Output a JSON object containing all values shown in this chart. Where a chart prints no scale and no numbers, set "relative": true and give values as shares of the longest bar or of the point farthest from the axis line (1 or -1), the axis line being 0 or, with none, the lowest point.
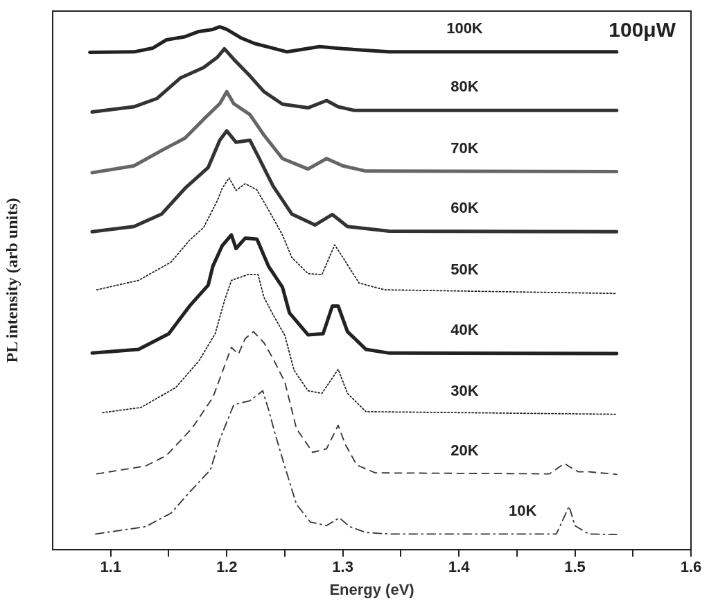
{
  "chart_data": {
    "type": "line",
    "xlabel": "Energy (eV)",
    "ylabel": "PL intensity (arb units)",
    "relative": true,
    "xlim": [
      1.05,
      1.6
    ],
    "xticks": [
      1.1,
      {
        "value": 1.15,
        "label": null
      },
      1.2,
      {
        "value": 1.25,
        "label": null
      },
      1.3,
      {
        "value": 1.35,
        "label": null
      },
      1.4,
      {
        "value": 1.45,
        "label": null
      },
      1.5,
      {
        "value": 1.55,
        "label": null
      },
      1.6
    ],
    "grid": false,
    "legend": false,
    "marker": "none",
    "annotations": [
      "100μW"
    ],
    "series": [
      {
        "name": "100K",
        "color": "#222222",
        "line_style": "solid",
        "x": [
          1.082,
          1.12,
          1.136,
          1.148,
          1.164,
          1.176,
          1.188,
          1.194,
          1.2,
          1.212,
          1.224,
          1.24,
          1.252,
          1.28,
          1.3,
          1.34,
          1.536
        ],
        "values": [
          0.951,
          0.952,
          0.959,
          0.975,
          0.981,
          0.991,
          0.995,
          1.0,
          0.995,
          0.979,
          0.968,
          0.959,
          0.952,
          0.962,
          0.958,
          0.952,
          0.952
        ]
      },
      {
        "name": "80K",
        "color": "#333333",
        "line_style": "solid",
        "x": [
          1.084,
          1.12,
          1.14,
          1.16,
          1.18,
          1.192,
          1.198,
          1.206,
          1.22,
          1.232,
          1.248,
          1.27,
          1.286,
          1.296,
          1.31,
          1.536
        ],
        "values": [
          0.837,
          0.847,
          0.863,
          0.902,
          0.922,
          0.942,
          0.958,
          0.938,
          0.906,
          0.876,
          0.852,
          0.845,
          0.859,
          0.847,
          0.84,
          0.84
        ]
      },
      {
        "name": "70K",
        "color": "#666666",
        "line_style": "solid",
        "x": [
          1.084,
          1.12,
          1.146,
          1.164,
          1.18,
          1.194,
          1.2,
          1.206,
          1.22,
          1.232,
          1.248,
          1.27,
          1.286,
          1.3,
          1.32,
          1.536
        ],
        "values": [
          0.721,
          0.734,
          0.766,
          0.787,
          0.823,
          0.853,
          0.876,
          0.853,
          0.832,
          0.793,
          0.748,
          0.728,
          0.748,
          0.734,
          0.724,
          0.723
        ]
      },
      {
        "name": "60K",
        "color": "#333333",
        "line_style": "solid",
        "x": [
          1.084,
          1.12,
          1.144,
          1.164,
          1.184,
          1.194,
          1.2,
          1.208,
          1.22,
          1.228,
          1.24,
          1.256,
          1.276,
          1.291,
          1.304,
          1.34,
          1.536
        ],
        "values": [
          0.608,
          0.618,
          0.642,
          0.691,
          0.731,
          0.783,
          0.801,
          0.779,
          0.783,
          0.748,
          0.695,
          0.642,
          0.621,
          0.641,
          0.618,
          0.609,
          0.608
        ]
      },
      {
        "name": "50K",
        "color": "#222222",
        "line_style": "dotted",
        "x": [
          1.088,
          1.124,
          1.152,
          1.168,
          1.18,
          1.192,
          1.196,
          1.202,
          1.208,
          1.216,
          1.226,
          1.238,
          1.248,
          1.256,
          1.27,
          1.282,
          1.293,
          1.3,
          1.314,
          1.336,
          1.536
        ],
        "values": [
          0.497,
          0.515,
          0.55,
          0.592,
          0.616,
          0.668,
          0.691,
          0.711,
          0.687,
          0.7,
          0.688,
          0.642,
          0.602,
          0.559,
          0.528,
          0.526,
          0.583,
          0.559,
          0.51,
          0.497,
          0.49
        ]
      },
      {
        "name": "40K",
        "color": "#222222",
        "line_style": "solid",
        "x": [
          1.084,
          1.124,
          1.15,
          1.168,
          1.184,
          1.188,
          1.196,
          1.204,
          1.208,
          1.216,
          1.226,
          1.236,
          1.248,
          1.254,
          1.27,
          1.283,
          1.291,
          1.296,
          1.304,
          1.32,
          1.34,
          1.536
        ],
        "values": [
          0.376,
          0.383,
          0.413,
          0.466,
          0.506,
          0.542,
          0.581,
          0.602,
          0.576,
          0.596,
          0.594,
          0.542,
          0.502,
          0.453,
          0.411,
          0.413,
          0.466,
          0.466,
          0.417,
          0.383,
          0.376,
          0.375
        ]
      },
      {
        "name": "30K",
        "color": "#222222",
        "line_style": "dotted",
        "x": [
          1.093,
          1.126,
          1.156,
          1.176,
          1.19,
          1.198,
          1.204,
          1.218,
          1.227,
          1.232,
          1.24,
          1.25,
          1.258,
          1.27,
          1.282,
          1.296,
          1.304,
          1.32,
          1.536
        ],
        "values": [
          0.262,
          0.272,
          0.31,
          0.361,
          0.413,
          0.476,
          0.515,
          0.526,
          0.526,
          0.483,
          0.449,
          0.41,
          0.343,
          0.304,
          0.299,
          0.345,
          0.299,
          0.264,
          0.259
        ]
      },
      {
        "name": "20K",
        "color": "#333333",
        "line_style": "dashed",
        "x": [
          1.088,
          1.13,
          1.148,
          1.17,
          1.188,
          1.198,
          1.204,
          1.21,
          1.216,
          1.223,
          1.232,
          1.24,
          1.25,
          1.26,
          1.274,
          1.286,
          1.296,
          1.302,
          1.312,
          1.328,
          1.478,
          1.491,
          1.495,
          1.503,
          1.512,
          1.536
        ],
        "values": [
          0.145,
          0.16,
          0.18,
          0.232,
          0.291,
          0.351,
          0.387,
          0.374,
          0.404,
          0.417,
          0.396,
          0.365,
          0.321,
          0.232,
          0.186,
          0.193,
          0.238,
          0.202,
          0.162,
          0.147,
          0.145,
          0.165,
          0.159,
          0.149,
          0.149,
          0.144
        ]
      },
      {
        "name": "10K",
        "color": "#333333",
        "line_style": "dashdot",
        "x": [
          1.087,
          1.13,
          1.152,
          1.168,
          1.186,
          1.194,
          1.202,
          1.206,
          1.22,
          1.231,
          1.236,
          1.242,
          1.25,
          1.26,
          1.272,
          1.286,
          1.297,
          1.306,
          1.32,
          1.34,
          1.484,
          1.495,
          1.5,
          1.512,
          1.536
        ],
        "values": [
          0.03,
          0.044,
          0.07,
          0.11,
          0.153,
          0.211,
          0.255,
          0.277,
          0.285,
          0.304,
          0.268,
          0.219,
          0.159,
          0.087,
          0.053,
          0.046,
          0.061,
          0.044,
          0.033,
          0.03,
          0.03,
          0.083,
          0.046,
          0.03,
          0.029
        ]
      }
    ]
  }
}
